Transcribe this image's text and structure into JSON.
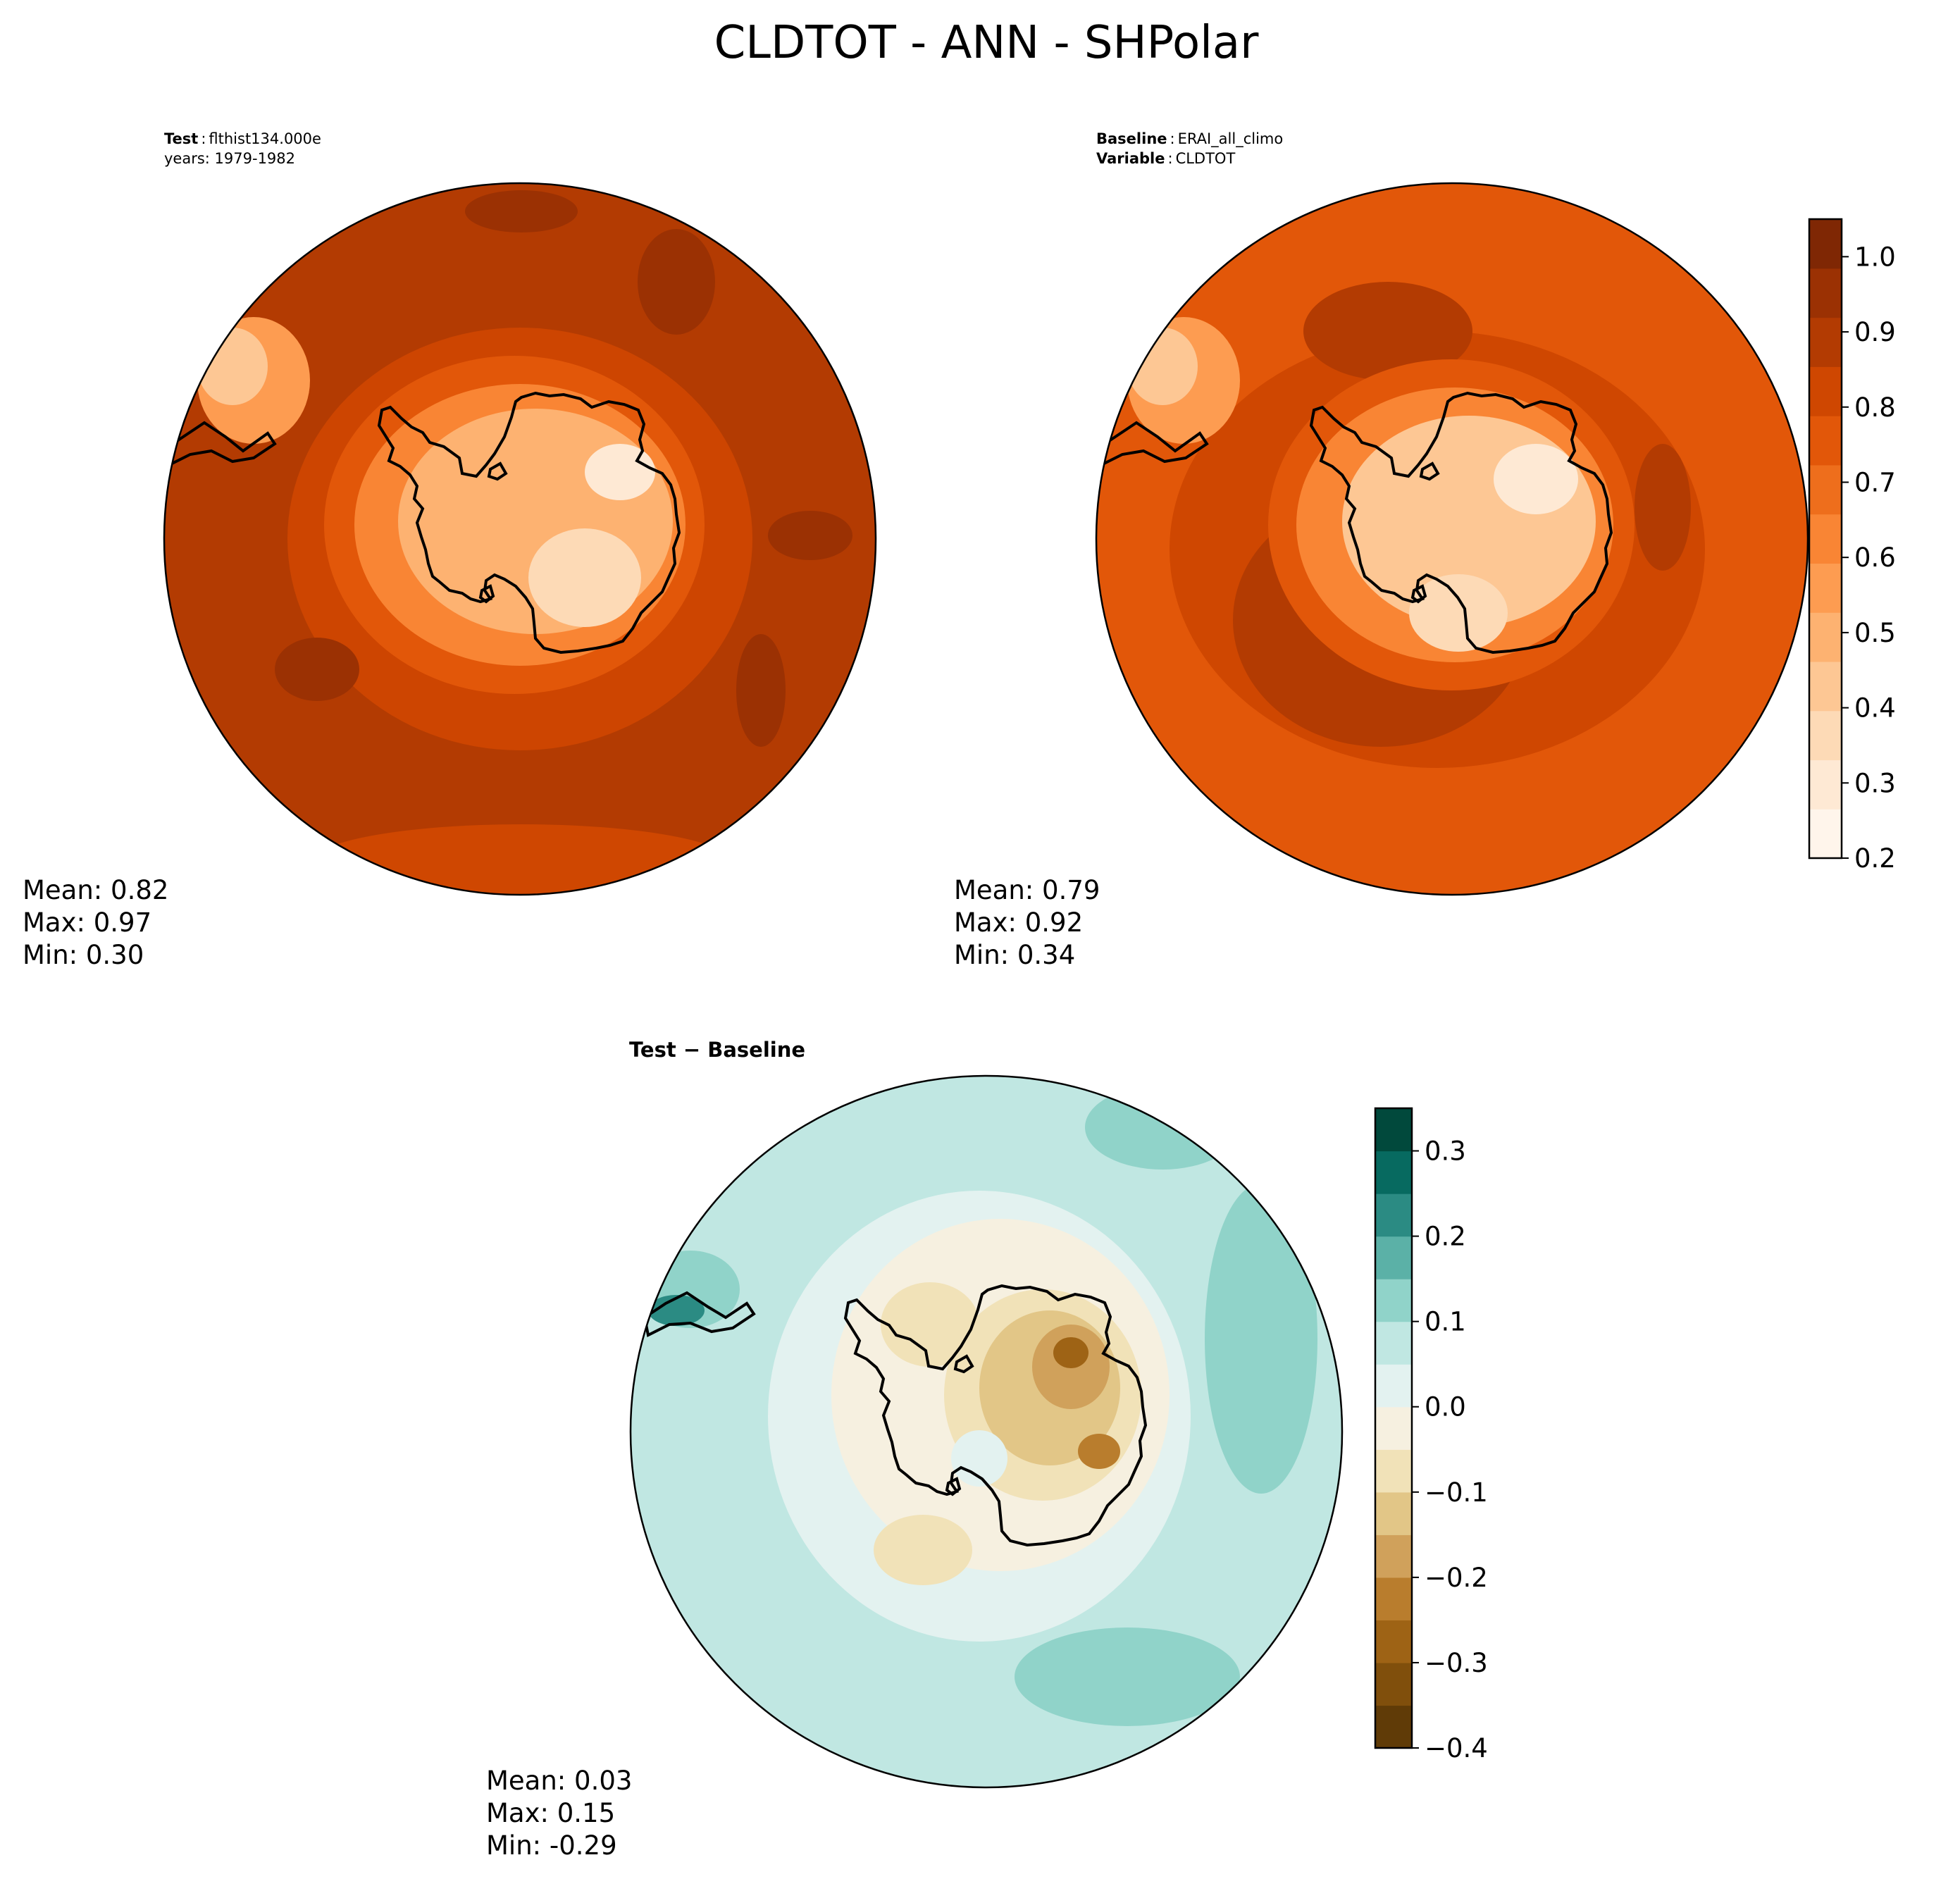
{
  "title": "CLDTOT - ANN - SHPolar",
  "colors": {
    "coast": "#000000",
    "cloud_scale": [
      "#fff5eb",
      "#fee9d4",
      "#fddab6",
      "#fdc794",
      "#fdb271",
      "#fd9c51",
      "#f98534",
      "#ee6e1c",
      "#e25709",
      "#cf4701",
      "#b33b02",
      "#9b3103",
      "#7f2704"
    ],
    "diff_scale": [
      "#603b07",
      "#804f0c",
      "#9e6315",
      "#b97d2d",
      "#d0a15b",
      "#e2c687",
      "#f1e2b8",
      "#f6f0e0",
      "#e3f2f0",
      "#c0e7e2",
      "#90d3c9",
      "#5bb1a7",
      "#2b8b83",
      "#076a60",
      "#01493c"
    ]
  },
  "chart_data": [
    {
      "type": "heatmap",
      "projection": "south-polar-stereographic",
      "panel": "test",
      "header": [
        {
          "label": "Test",
          "value": "flthist134.000e"
        },
        {
          "label": "",
          "value": "years: 1979-1982"
        }
      ],
      "background_level": 10,
      "stats": {
        "mean_label": "Mean:  0.82",
        "max_label": "Max:  0.97",
        "min_label": "Min:  0.30",
        "mean": 0.82,
        "max": 0.97,
        "min": 0.3
      }
    },
    {
      "type": "heatmap",
      "projection": "south-polar-stereographic",
      "panel": "baseline",
      "header": [
        {
          "label": "Baseline",
          "value": "ERAI_all_climo"
        },
        {
          "label": "Variable",
          "value": "CLDTOT"
        }
      ],
      "background_level": 8,
      "stats": {
        "mean_label": "Mean:  0.79",
        "max_label": "Max:  0.92",
        "min_label": "Min:  0.34",
        "mean": 0.79,
        "max": 0.92,
        "min": 0.34
      },
      "colorbar": {
        "range": [
          0.2,
          1.05
        ],
        "levels": 13,
        "ticks": [
          0.2,
          0.3,
          0.4,
          0.5,
          0.6,
          0.7,
          0.8,
          0.9,
          1.0
        ],
        "tick_labels": [
          "0.2",
          "0.3",
          "0.4",
          "0.5",
          "0.6",
          "0.7",
          "0.8",
          "0.9",
          "1.0"
        ]
      }
    },
    {
      "type": "heatmap",
      "projection": "south-polar-stereographic",
      "panel": "difference",
      "header": [
        {
          "label": "Test − Baseline",
          "value": ""
        }
      ],
      "background_level": 9,
      "stats": {
        "mean_label": "Mean:  0.03",
        "max_label": "Max:  0.15",
        "min_label": "Min: -0.29",
        "mean": 0.03,
        "max": 0.15,
        "min": -0.29
      },
      "colorbar": {
        "range": [
          -0.4,
          0.35
        ],
        "levels": 15,
        "ticks": [
          -0.4,
          -0.3,
          -0.2,
          -0.1,
          0.0,
          0.1,
          0.2,
          0.3
        ],
        "tick_labels": [
          "−0.4",
          "−0.3",
          "−0.2",
          "−0.1",
          "0.0",
          "0.1",
          "0.2",
          "0.3"
        ]
      }
    }
  ]
}
